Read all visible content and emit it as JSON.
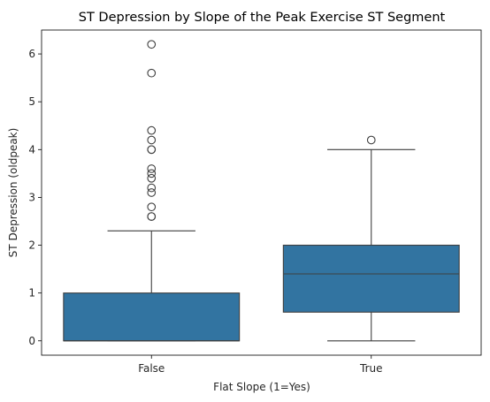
{
  "chart_data": {
    "type": "box",
    "title": "ST Depression by Slope of the Peak Exercise ST Segment",
    "xlabel": "Flat Slope (1=Yes)",
    "ylabel": "ST Depression (oldpeak)",
    "categories": [
      "False",
      "True"
    ],
    "ylim": [
      -0.3,
      6.5
    ],
    "yticks": [
      0,
      1,
      2,
      3,
      4,
      5,
      6
    ],
    "grid": false,
    "box_color": "#3274a1",
    "line_color": "#3f3f3f",
    "boxes": [
      {
        "category": "False",
        "whisker_low": 0.0,
        "q1": 0.0,
        "median": 0.0,
        "q3": 1.0,
        "whisker_high": 2.3,
        "outliers": [
          2.6,
          2.6,
          2.8,
          3.1,
          3.2,
          3.4,
          3.5,
          3.6,
          4.0,
          4.0,
          4.2,
          4.4,
          5.6,
          6.2
        ]
      },
      {
        "category": "True",
        "whisker_low": 0.0,
        "q1": 0.6,
        "median": 1.4,
        "q3": 2.0,
        "whisker_high": 4.0,
        "outliers": [
          4.2
        ]
      }
    ]
  }
}
